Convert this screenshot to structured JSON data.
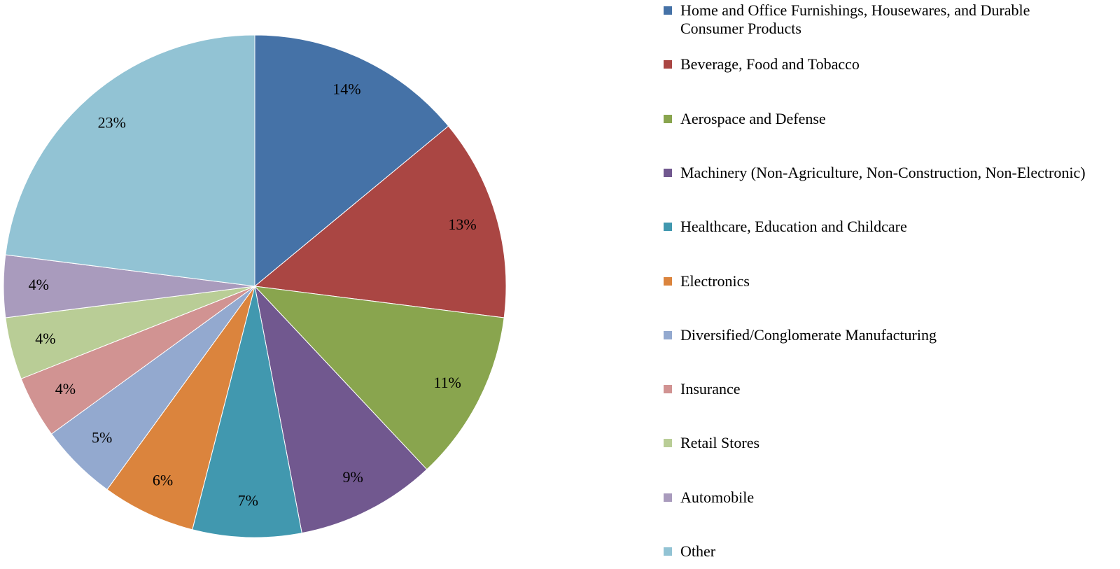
{
  "chart_data": {
    "type": "pie",
    "categories": [
      "Home and Office Furnishings, Housewares, and Durable Consumer Products",
      "Beverage, Food and Tobacco",
      "Aerospace and Defense",
      "Machinery (Non-Agriculture, Non-Construction, Non-Electronic)",
      "Healthcare, Education and Childcare",
      "Electronics",
      "Diversified/Conglomerate Manufacturing",
      "Insurance",
      "Retail Stores",
      "Automobile",
      "Other"
    ],
    "values": [
      14,
      13,
      11,
      9,
      7,
      6,
      5,
      4,
      4,
      4,
      23
    ],
    "value_labels": [
      "14%",
      "13%",
      "11%",
      "9%",
      "7%",
      "6%",
      "5%",
      "4%",
      "4%",
      "4%",
      "23%"
    ],
    "colors": [
      "#4572a7",
      "#aa4643",
      "#89a54e",
      "#71588f",
      "#4198af",
      "#db843d",
      "#93a9cf",
      "#d19392",
      "#b9cd96",
      "#a99bbd",
      "#92c3d4"
    ],
    "legend": "right"
  }
}
